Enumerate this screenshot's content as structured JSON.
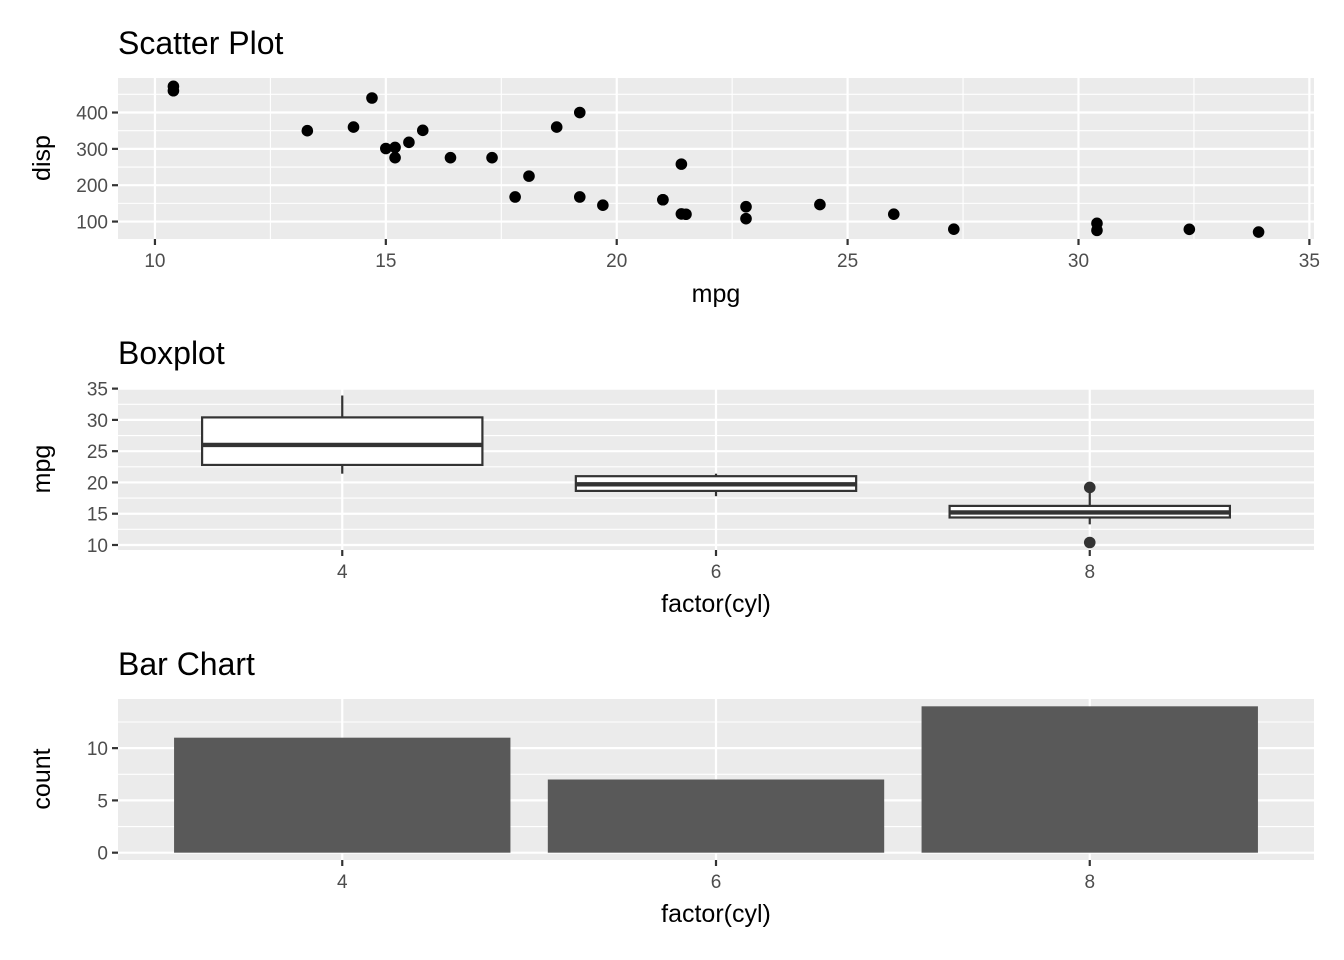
{
  "chart_data": [
    {
      "type": "scatter",
      "title": "Scatter Plot",
      "xlabel": "mpg",
      "ylabel": "disp",
      "xlim": [
        9.2,
        35.1
      ],
      "ylim": [
        52,
        495
      ],
      "xticks": [
        10,
        15,
        20,
        25,
        30,
        35
      ],
      "yticks": [
        100,
        200,
        300,
        400
      ],
      "grid": true,
      "colors": {
        "point": "#000000",
        "panel": "#ebebeb",
        "grid": "#ffffff"
      },
      "points": [
        {
          "x": 21.0,
          "y": 160
        },
        {
          "x": 21.0,
          "y": 160
        },
        {
          "x": 22.8,
          "y": 108
        },
        {
          "x": 21.4,
          "y": 258
        },
        {
          "x": 18.7,
          "y": 360
        },
        {
          "x": 18.1,
          "y": 225
        },
        {
          "x": 14.3,
          "y": 360
        },
        {
          "x": 24.4,
          "y": 146.7
        },
        {
          "x": 22.8,
          "y": 140.8
        },
        {
          "x": 19.2,
          "y": 167.6
        },
        {
          "x": 17.8,
          "y": 167.6
        },
        {
          "x": 16.4,
          "y": 275.8
        },
        {
          "x": 17.3,
          "y": 275.8
        },
        {
          "x": 15.2,
          "y": 275.8
        },
        {
          "x": 10.4,
          "y": 472
        },
        {
          "x": 10.4,
          "y": 460
        },
        {
          "x": 14.7,
          "y": 440
        },
        {
          "x": 32.4,
          "y": 78.7
        },
        {
          "x": 30.4,
          "y": 75.7
        },
        {
          "x": 33.9,
          "y": 71.1
        },
        {
          "x": 21.5,
          "y": 120.1
        },
        {
          "x": 15.5,
          "y": 318
        },
        {
          "x": 15.2,
          "y": 304
        },
        {
          "x": 13.3,
          "y": 350
        },
        {
          "x": 19.2,
          "y": 400
        },
        {
          "x": 27.3,
          "y": 79
        },
        {
          "x": 26.0,
          "y": 120.3
        },
        {
          "x": 30.4,
          "y": 95.1
        },
        {
          "x": 15.8,
          "y": 351
        },
        {
          "x": 19.7,
          "y": 145
        },
        {
          "x": 15.0,
          "y": 301
        },
        {
          "x": 21.4,
          "y": 121
        }
      ]
    },
    {
      "type": "boxplot",
      "title": "Boxplot",
      "xlabel": "factor(cyl)",
      "ylabel": "mpg",
      "categories": [
        "4",
        "6",
        "8"
      ],
      "ylim": [
        9.2,
        35.1
      ],
      "yticks": [
        10,
        15,
        20,
        25,
        30,
        35
      ],
      "grid": true,
      "colors": {
        "box_fill": "#ffffff",
        "box_line": "#333333",
        "outlier": "#333333"
      },
      "boxes": [
        {
          "category": "4",
          "min": 21.4,
          "q1": 22.8,
          "median": 26.0,
          "q3": 30.4,
          "max": 33.9,
          "outliers": []
        },
        {
          "category": "6",
          "min": 17.8,
          "q1": 18.65,
          "median": 19.7,
          "q3": 21.0,
          "max": 21.4,
          "outliers": []
        },
        {
          "category": "8",
          "min": 13.3,
          "q1": 14.4,
          "median": 15.2,
          "q3": 16.25,
          "max": 18.7,
          "outliers": [
            10.4,
            19.2
          ]
        }
      ]
    },
    {
      "type": "bar",
      "title": "Bar Chart",
      "xlabel": "factor(cyl)",
      "ylabel": "count",
      "categories": [
        "4",
        "6",
        "8"
      ],
      "values": [
        11,
        7,
        14
      ],
      "ylim": [
        -0.7,
        14.7
      ],
      "yticks": [
        0,
        5,
        10
      ],
      "grid": true,
      "colors": {
        "bar": "#595959"
      }
    }
  ]
}
